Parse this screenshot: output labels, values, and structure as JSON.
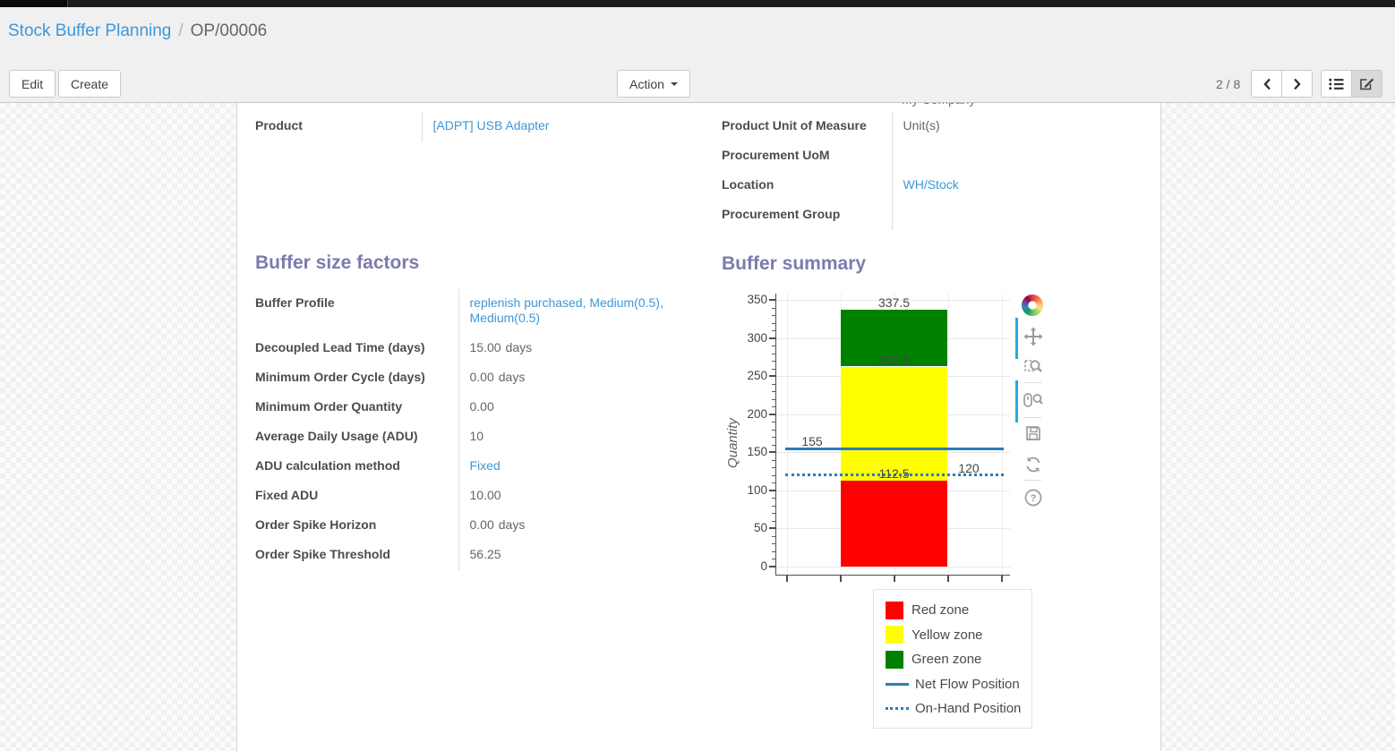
{
  "breadcrumb": {
    "parent": "Stock Buffer Planning",
    "separator": "/",
    "current": "OP/00006"
  },
  "control_panel": {
    "edit_label": "Edit",
    "create_label": "Create",
    "action_label": "Action",
    "pager": "2 / 8",
    "icons": [
      "caret-down-icon",
      "chevron-left-icon",
      "chevron-right-icon",
      "list-view-icon",
      "form-view-icon"
    ]
  },
  "form": {
    "top_right_clipped_value": "My Company",
    "left_fields": [
      {
        "label": "Product",
        "value": "[ADPT] USB Adapter",
        "link": true
      }
    ],
    "right_fields": [
      {
        "label": "Product Unit of Measure",
        "value": "Unit(s)",
        "link": false
      },
      {
        "label": "Procurement UoM",
        "value": "",
        "link": false
      },
      {
        "label": "Location",
        "value": "WH/Stock",
        "link": true
      },
      {
        "label": "Procurement Group",
        "value": "",
        "link": false
      }
    ],
    "factors_title": "Buffer size factors",
    "summary_title": "Buffer summary",
    "factors": [
      {
        "label": "Buffer Profile",
        "value": "replenish purchased, Medium(0.5), Medium(0.5)",
        "link": true
      },
      {
        "label": "Decoupled Lead Time (days)",
        "value": "15.00",
        "suffix": "days"
      },
      {
        "label": "Minimum Order Cycle (days)",
        "value": "0.00",
        "suffix": "days"
      },
      {
        "label": "Minimum Order Quantity",
        "value": "0.00"
      },
      {
        "label": "Average Daily Usage (ADU)",
        "value": "10"
      },
      {
        "label": "ADU calculation method",
        "value": "Fixed",
        "link": true
      },
      {
        "label": "Fixed ADU",
        "value": "10.00"
      },
      {
        "label": "Order Spike Horizon",
        "value": "0.00",
        "suffix": "days"
      },
      {
        "label": "Order Spike Threshold",
        "value": "56.25"
      }
    ]
  },
  "chart_data": {
    "type": "bar",
    "title": "Buffer summary",
    "xlabel": "",
    "ylabel": "Quantity",
    "ylim": [
      0,
      350
    ],
    "yticks": [
      0,
      50,
      100,
      150,
      200,
      250,
      300,
      350
    ],
    "minor_tick_step": 10,
    "grid": true,
    "zones": [
      {
        "name": "Red zone",
        "from": 0,
        "to": 112.5,
        "color": "#ff0000"
      },
      {
        "name": "Yellow zone",
        "from": 112.5,
        "to": 262.5,
        "color": "#ffff00"
      },
      {
        "name": "Green zone",
        "from": 262.5,
        "to": 337.5,
        "color": "#008000"
      }
    ],
    "bar_labels": [
      {
        "text": "337.5",
        "value": 337.5,
        "placement": "bar"
      },
      {
        "text": "262.5",
        "value": 262.5,
        "placement": "bar"
      },
      {
        "text": "112.5",
        "value": 112.5,
        "placement": "bar"
      }
    ],
    "lines": [
      {
        "name": "Net Flow Position",
        "value": 155,
        "style": "solid",
        "color": "#2b7cb9",
        "label": "155",
        "label_side": "left"
      },
      {
        "name": "On-Hand Position",
        "value": 120,
        "style": "dotted",
        "color": "#2b7cb9",
        "label": "120",
        "label_side": "right"
      }
    ],
    "legend_entries": [
      "Red zone",
      "Yellow zone",
      "Green zone",
      "Net Flow Position",
      "On-Hand Position"
    ],
    "legend_position": "below-right"
  },
  "chart_toolbar": {
    "tools": [
      {
        "name": "bokeh-logo",
        "active": false
      },
      {
        "name": "pan-tool",
        "active": true
      },
      {
        "name": "box-zoom-tool",
        "active": false
      },
      {
        "name": "wheel-zoom-tool",
        "active": true
      },
      {
        "name": "save-tool",
        "active": false
      },
      {
        "name": "reset-tool",
        "active": false
      },
      {
        "name": "help-tool",
        "active": false
      }
    ]
  },
  "colors": {
    "link": "#3d97d8",
    "heading": "#7c7bad",
    "active_tool": "#26aadc",
    "red_zone": "#ff0000",
    "yellow_zone": "#ffff00",
    "green_zone": "#008000",
    "line_blue": "#2b7cb9"
  }
}
